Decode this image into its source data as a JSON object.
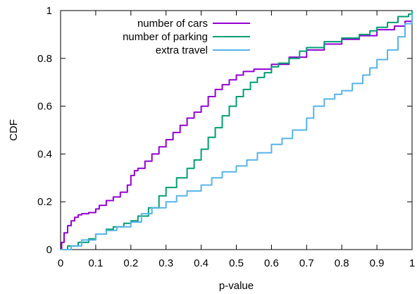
{
  "chart_data": {
    "type": "line",
    "title": "",
    "xlabel": "p-value",
    "ylabel": "CDF",
    "xlim": [
      0,
      1
    ],
    "ylim": [
      0,
      1
    ],
    "xticks": [
      "0",
      "0.1",
      "0.2",
      "0.3",
      "0.4",
      "0.5",
      "0.6",
      "0.7",
      "0.8",
      "0.9",
      "1"
    ],
    "yticks": [
      "0",
      "0.2",
      "0.4",
      "0.6",
      "0.8",
      "1"
    ],
    "grid": false,
    "legend_position": "top-right",
    "series": [
      {
        "name": "number of cars",
        "color": "#9400d3",
        "x": [
          0,
          0.003,
          0.01,
          0.02,
          0.03,
          0.04,
          0.05,
          0.06,
          0.08,
          0.1,
          0.11,
          0.13,
          0.15,
          0.17,
          0.19,
          0.2,
          0.21,
          0.22,
          0.24,
          0.26,
          0.28,
          0.3,
          0.32,
          0.34,
          0.36,
          0.38,
          0.4,
          0.42,
          0.44,
          0.46,
          0.48,
          0.5,
          0.52,
          0.55,
          0.6,
          0.65,
          0.7,
          0.75,
          0.8,
          0.85,
          0.9,
          0.95,
          0.98,
          1
        ],
        "y": [
          0,
          0.03,
          0.07,
          0.1,
          0.12,
          0.135,
          0.145,
          0.15,
          0.155,
          0.17,
          0.185,
          0.205,
          0.22,
          0.24,
          0.27,
          0.31,
          0.33,
          0.34,
          0.37,
          0.4,
          0.43,
          0.46,
          0.49,
          0.52,
          0.55,
          0.575,
          0.6,
          0.64,
          0.67,
          0.69,
          0.71,
          0.73,
          0.745,
          0.755,
          0.775,
          0.805,
          0.835,
          0.86,
          0.88,
          0.895,
          0.92,
          0.935,
          0.955,
          0.97
        ]
      },
      {
        "name": "number of parking",
        "color": "#009e73",
        "x": [
          0,
          0.02,
          0.05,
          0.08,
          0.1,
          0.13,
          0.15,
          0.18,
          0.2,
          0.22,
          0.25,
          0.28,
          0.3,
          0.33,
          0.36,
          0.38,
          0.4,
          0.42,
          0.44,
          0.46,
          0.48,
          0.5,
          0.52,
          0.54,
          0.56,
          0.58,
          0.6,
          0.62,
          0.65,
          0.68,
          0.7,
          0.75,
          0.8,
          0.85,
          0.88,
          0.9,
          0.93,
          0.96,
          0.99,
          1
        ],
        "y": [
          0,
          0.015,
          0.03,
          0.045,
          0.065,
          0.085,
          0.095,
          0.11,
          0.12,
          0.14,
          0.175,
          0.225,
          0.26,
          0.3,
          0.34,
          0.375,
          0.42,
          0.47,
          0.51,
          0.56,
          0.6,
          0.64,
          0.67,
          0.7,
          0.72,
          0.74,
          0.765,
          0.78,
          0.8,
          0.83,
          0.845,
          0.87,
          0.885,
          0.9,
          0.915,
          0.93,
          0.95,
          0.975,
          0.985,
          1
        ]
      },
      {
        "name": "extra travel",
        "color": "#56b4e9",
        "x": [
          0,
          0.03,
          0.06,
          0.1,
          0.13,
          0.16,
          0.2,
          0.23,
          0.26,
          0.3,
          0.33,
          0.36,
          0.4,
          0.43,
          0.46,
          0.5,
          0.53,
          0.56,
          0.6,
          0.63,
          0.66,
          0.7,
          0.72,
          0.75,
          0.78,
          0.8,
          0.83,
          0.86,
          0.88,
          0.9,
          0.93,
          0.96,
          0.98,
          1
        ],
        "y": [
          0,
          0.015,
          0.04,
          0.065,
          0.08,
          0.095,
          0.115,
          0.15,
          0.175,
          0.2,
          0.225,
          0.245,
          0.27,
          0.3,
          0.325,
          0.35,
          0.375,
          0.405,
          0.44,
          0.465,
          0.5,
          0.55,
          0.6,
          0.63,
          0.65,
          0.665,
          0.695,
          0.73,
          0.76,
          0.795,
          0.835,
          0.89,
          0.945,
          0.99
        ]
      }
    ]
  }
}
